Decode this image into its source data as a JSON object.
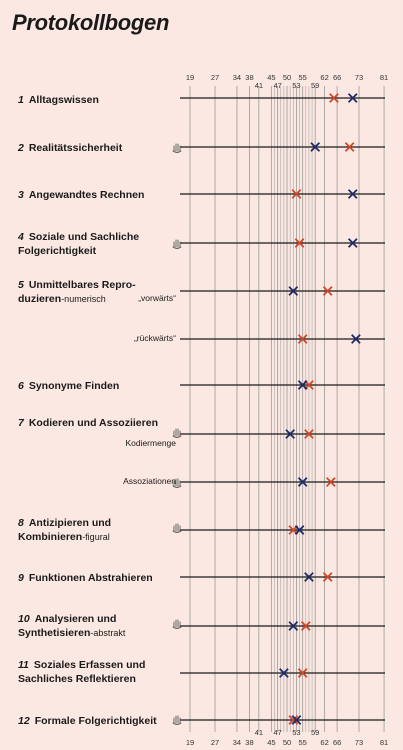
{
  "title": "Protokollbogen",
  "chart_data": {
    "type": "dot-plot",
    "ticks_top_row": [
      "19",
      "27",
      "34",
      "38",
      "45",
      "50",
      "55",
      "62",
      "66",
      "73",
      "81"
    ],
    "ticks_top_row2": [
      "41",
      "47",
      "53",
      "59"
    ],
    "ticks_bottom_row": [
      "19",
      "27",
      "34",
      "38",
      "45",
      "50",
      "55",
      "62",
      "66",
      "73",
      "81"
    ],
    "ticks_bottom_row2": [
      "41",
      "47",
      "53",
      "59"
    ],
    "rows": [
      {
        "num": "1",
        "lines": [
          "Alltagswissen"
        ],
        "sub": "",
        "hand": false,
        "red": 65,
        "blue": 71
      },
      {
        "num": "2",
        "lines": [
          "Realitätssicherheit"
        ],
        "sub": "",
        "hand": true,
        "red": 70,
        "blue": 59
      },
      {
        "num": "3",
        "lines": [
          "Angewandtes Rechnen"
        ],
        "sub": "",
        "hand": false,
        "red": 53,
        "blue": 71
      },
      {
        "num": "4",
        "lines": [
          "Soziale und Sachliche",
          "Folgerichtigkeit"
        ],
        "sub": "",
        "hand": true,
        "red": 54,
        "blue": 71
      },
      {
        "num": "5",
        "lines": [
          "Unmittelbares Repro-",
          "duzieren"
        ],
        "sub": "-numerisch",
        "hand": false,
        "red": 63,
        "blue": 52,
        "tag": "„vorwärts“"
      },
      {
        "num": "",
        "lines": [],
        "sub": "",
        "hand": false,
        "red": 55,
        "blue": 72,
        "tag": "„rückwärts“"
      },
      {
        "num": "6",
        "lines": [
          "Synonyme Finden"
        ],
        "sub": "",
        "hand": false,
        "red": 57,
        "blue": 55
      },
      {
        "num": "7",
        "lines": [
          "Kodieren und Assoziieren"
        ],
        "sub": "",
        "hand": true,
        "red": 57,
        "blue": 51,
        "tag": "Kodiermenge"
      },
      {
        "num": "",
        "lines": [],
        "sub": "",
        "hand": true,
        "red": 64,
        "blue": 55,
        "tag": "Assoziationen"
      },
      {
        "num": "8",
        "lines": [
          "Antizipieren und",
          "Kombinieren"
        ],
        "sub": "-figural",
        "hand": true,
        "red": 52,
        "blue": 54
      },
      {
        "num": "9",
        "lines": [
          "Funktionen Abstrahieren"
        ],
        "sub": "",
        "hand": false,
        "red": 63,
        "blue": 57
      },
      {
        "num": "10",
        "lines": [
          "Analysieren und",
          "Synthetisieren"
        ],
        "sub": "-abstrakt",
        "hand": true,
        "red": 56,
        "blue": 52
      },
      {
        "num": "11",
        "lines": [
          "Soziales Erfassen und",
          "Sachliches Reflektieren"
        ],
        "sub": "",
        "hand": false,
        "red": 55,
        "blue": 49
      },
      {
        "num": "12",
        "lines": [
          "Formale Folgerichtigkeit"
        ],
        "sub": "",
        "hand": true,
        "red": 52,
        "blue": 53
      }
    ],
    "colors": {
      "red": "#d0482a",
      "blue": "#1f2b66",
      "line": "#1a1a1a",
      "grid": "#9a9a9a"
    }
  }
}
